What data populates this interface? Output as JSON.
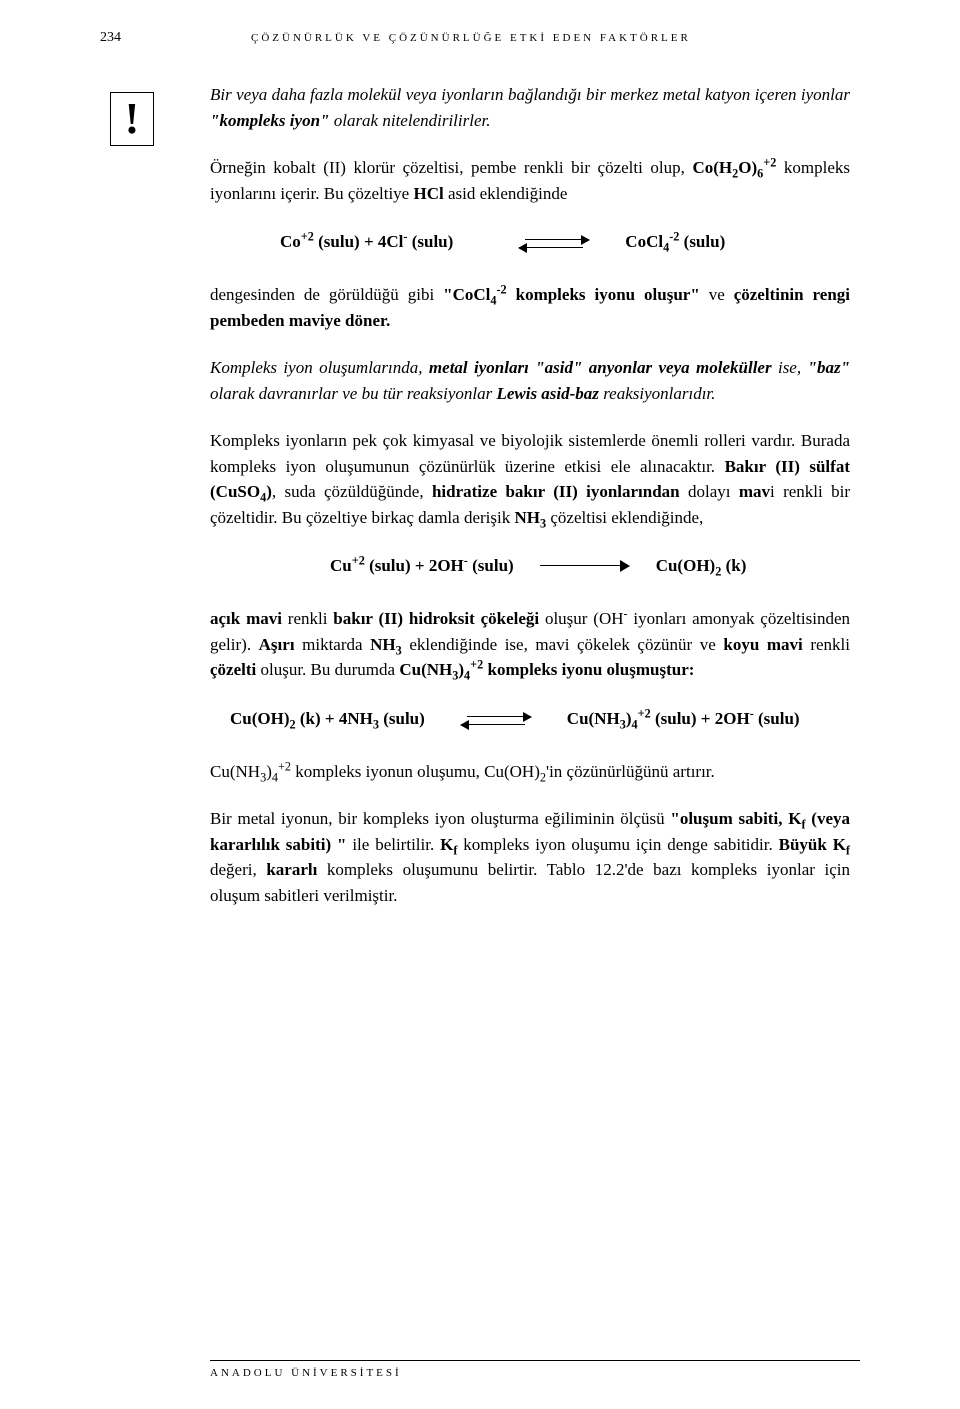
{
  "page_number": "234",
  "chapter_title": "ÇÖZÜNÜRLÜK VE ÇÖZÜNÜRLÜĞE ETKİ EDEN FAKTÖRLER",
  "excl_mark": "!",
  "p1_a": "Bir veya daha fazla molekül veya iyonların bağlandığı bir merkez metal katyon içeren iyonlar ",
  "p1_b": "\"kompleks iyon\"",
  "p1_c": " olarak nitelendirilirler.",
  "p2_a": "Örneğin kobalt (II) klorür çözeltisi, pembe renkli bir çözelti olup, ",
  "p2_b": " kompleks iyonlarını içerir. Bu çözeltiye ",
  "p2_c": "HCl",
  "p2_d": " asid eklendiğinde",
  "eq1_l1": "Co",
  "eq1_l2": " (sulu) + 4Cl",
  "eq1_l3": " (sulu)",
  "eq1_r1": "CoCl",
  "eq1_r2": " (sulu)",
  "p3_a": "dengesinden de görüldüğü gibi ",
  "p3_b": "\"CoCl",
  "p3_c": " kompleks iyonu oluşur\"",
  "p3_d": " ve ",
  "p3_e": "çözeltinin rengi pembeden maviye döner.",
  "p4_a": "Kompleks iyon oluşumlarında, ",
  "p4_b": "metal iyonları \"asid\" anyonlar veya moleküller",
  "p4_c": " ise, ",
  "p4_d": "\"baz\"",
  "p4_e": " olarak davranırlar ve bu tür reaksiyonlar ",
  "p4_f": "Lewis asid-baz",
  "p4_g": " reaksiyonlarıdır.",
  "p5_a": "Kompleks iyonların pek çok kimyasal ve biyolojik sistemlerde önemli rolleri vardır. Burada kompleks iyon oluşumunun çözünürlük üzerine etkisi ele alınacaktır. ",
  "p5_b": "Bakır (II) sülfat (CuSO",
  "p5_c": ")",
  "p5_d": ", suda çözüldüğünde, ",
  "p5_e": "hidratize bakır (II) iyonlarından",
  "p5_f": " dolayı ",
  "p5_g": "mav",
  "p5_h": "i renkli bir çözeltidir. Bu çözeltiye birkaç damla derişik ",
  "p5_i": "NH",
  "p5_j": " çözeltisi eklendiğinde,",
  "eq2_l1": "Cu",
  "eq2_l2": " (sulu) + 2OH",
  "eq2_l3": " (sulu)",
  "eq2_r1": "Cu(OH)",
  "eq2_r2": " (k)",
  "p6_a": "açık mavi",
  "p6_b": " renkli ",
  "p6_c": "bakır (II) hidroksit çökeleği",
  "p6_d": " oluşur (OH",
  "p6_e": " iyonları amonyak çözeltisinden gelir). ",
  "p6_f": "Aşırı",
  "p6_g": " miktarda ",
  "p6_h": "NH",
  "p6_i": " eklendiğinde ise, mavi çökelek çözünür ve ",
  "p6_j": "koyu mavi",
  "p6_k": " renkli ",
  "p6_l": "çözelti",
  "p6_m": " oluşur. Bu durumda ",
  "p6_n": "Cu(NH",
  "p6_o": " kompleks iyonu oluşmuştur:",
  "eq3_l1": "Cu(OH)",
  "eq3_l2": " (k) + 4NH",
  "eq3_l3": " (sulu)",
  "eq3_r1": "Cu(NH",
  "eq3_r2": " (sulu) + 2OH",
  "eq3_r3": " (sulu)",
  "p7_a": "Cu(NH",
  "p7_b": " kompleks iyonun oluşumu, Cu(OH)",
  "p7_c": "'in çözünürlüğünü artırır.",
  "p8_a": "Bir metal iyonun, bir kompleks iyon oluşturma eğiliminin ölçüsü ",
  "p8_b": "\"oluşum sabiti, K",
  "p8_c": " (veya kararlılık sabiti) \"",
  "p8_d": " ile belirtilir. ",
  "p8_e": "K",
  "p8_f": " kompleks iyon oluşumu için denge sabitidir. ",
  "p8_g": "Büyük K",
  "p8_h": " değeri, ",
  "p8_i": "kararlı",
  "p8_j": " kompleks oluşumunu belirtir. Tablo 12.2'de bazı kompleks iyonlar için oluşum sabitleri verilmiştir.",
  "footer_text": "ANADOLU ÜNİVERSİTESİ"
}
